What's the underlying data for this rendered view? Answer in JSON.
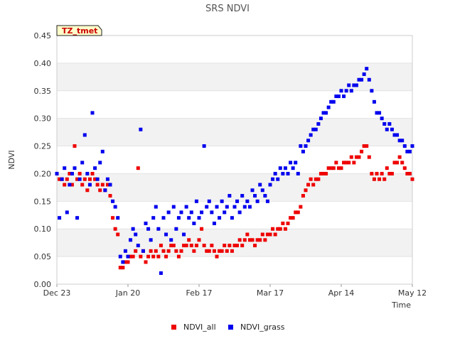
{
  "chart_data": {
    "type": "scatter",
    "title": "SRS NDVI",
    "xlabel": "Time",
    "ylabel": "NDVI",
    "annotation": "TZ_tmet",
    "x_unit": "days since Dec 23",
    "xlim": [
      0,
      140
    ],
    "ylim": [
      0,
      0.45
    ],
    "x_ticks": [
      {
        "label": "Dec 23",
        "day": 0
      },
      {
        "label": "Jan 20",
        "day": 28
      },
      {
        "label": "Feb 17",
        "day": 56
      },
      {
        "label": "Mar 17",
        "day": 84
      },
      {
        "label": "Apr 14",
        "day": 112
      },
      {
        "label": "May 12",
        "day": 140
      }
    ],
    "y_ticks": [
      "0.00",
      "0.05",
      "0.10",
      "0.15",
      "0.20",
      "0.25",
      "0.30",
      "0.35",
      "0.40",
      "0.45"
    ],
    "grid": "horizontal bands",
    "legend": "bottom-center",
    "series": [
      {
        "name": "NDVI_all",
        "color": "#ee0000",
        "x": [
          0,
          1,
          2,
          3,
          4,
          5,
          6,
          7,
          8,
          9,
          10,
          11,
          12,
          13,
          14,
          15,
          16,
          17,
          18,
          19,
          20,
          21,
          22,
          23,
          24,
          25,
          26,
          27,
          28,
          29,
          30,
          31,
          32,
          33,
          34,
          35,
          36,
          37,
          38,
          39,
          40,
          41,
          42,
          43,
          44,
          45,
          46,
          47,
          48,
          49,
          50,
          51,
          52,
          53,
          54,
          55,
          56,
          57,
          58,
          59,
          60,
          61,
          62,
          63,
          64,
          65,
          66,
          67,
          68,
          69,
          70,
          71,
          72,
          73,
          74,
          75,
          76,
          77,
          78,
          79,
          80,
          81,
          82,
          83,
          84,
          85,
          86,
          87,
          88,
          89,
          90,
          91,
          92,
          93,
          94,
          95,
          96,
          97,
          98,
          99,
          100,
          101,
          102,
          103,
          104,
          105,
          106,
          107,
          108,
          109,
          110,
          111,
          112,
          113,
          114,
          115,
          116,
          117,
          118,
          119,
          120,
          121,
          122,
          123,
          124,
          125,
          126,
          127,
          128,
          129,
          130,
          131,
          132,
          133,
          134,
          135,
          136,
          137,
          138,
          139,
          140
        ],
        "y": [
          0.2,
          0.19,
          0.19,
          0.18,
          0.19,
          0.2,
          0.18,
          0.25,
          0.19,
          0.2,
          0.18,
          0.19,
          0.17,
          0.19,
          0.2,
          0.19,
          0.18,
          0.17,
          0.18,
          0.17,
          0.18,
          0.16,
          0.12,
          0.1,
          0.09,
          0.03,
          0.03,
          0.04,
          0.04,
          0.05,
          0.05,
          0.06,
          0.21,
          0.05,
          0.06,
          0.04,
          0.05,
          0.06,
          0.05,
          0.06,
          0.05,
          0.07,
          0.06,
          0.05,
          0.06,
          0.07,
          0.07,
          0.06,
          0.05,
          0.06,
          0.07,
          0.07,
          0.08,
          0.07,
          0.06,
          0.07,
          0.08,
          0.1,
          0.07,
          0.06,
          0.06,
          0.07,
          0.06,
          0.05,
          0.06,
          0.06,
          0.07,
          0.06,
          0.07,
          0.06,
          0.07,
          0.07,
          0.08,
          0.07,
          0.08,
          0.09,
          0.08,
          0.08,
          0.07,
          0.08,
          0.08,
          0.09,
          0.08,
          0.09,
          0.09,
          0.1,
          0.09,
          0.1,
          0.1,
          0.11,
          0.1,
          0.11,
          0.12,
          0.12,
          0.13,
          0.13,
          0.14,
          0.16,
          0.17,
          0.18,
          0.19,
          0.18,
          0.19,
          0.19,
          0.2,
          0.2,
          0.2,
          0.21,
          0.21,
          0.21,
          0.22,
          0.21,
          0.21,
          0.22,
          0.22,
          0.22,
          0.23,
          0.22,
          0.23,
          0.23,
          0.24,
          0.25,
          0.25,
          0.23,
          0.2,
          0.19,
          0.2,
          0.19,
          0.2,
          0.19,
          0.21,
          0.2,
          0.2,
          0.22,
          0.22,
          0.23,
          0.22,
          0.21,
          0.2,
          0.2,
          0.19
        ]
      },
      {
        "name": "NDVI_grass",
        "color": "#0000ee",
        "x": [
          0,
          1,
          2,
          3,
          4,
          5,
          6,
          7,
          8,
          9,
          10,
          11,
          12,
          13,
          14,
          15,
          16,
          17,
          18,
          19,
          20,
          21,
          22,
          23,
          24,
          25,
          26,
          27,
          28,
          29,
          30,
          31,
          32,
          33,
          34,
          35,
          36,
          37,
          38,
          39,
          40,
          41,
          42,
          43,
          44,
          45,
          46,
          47,
          48,
          49,
          50,
          51,
          52,
          53,
          54,
          55,
          56,
          57,
          58,
          59,
          60,
          61,
          62,
          63,
          64,
          65,
          66,
          67,
          68,
          69,
          70,
          71,
          72,
          73,
          74,
          75,
          76,
          77,
          78,
          79,
          80,
          81,
          82,
          83,
          84,
          85,
          86,
          87,
          88,
          89,
          90,
          91,
          92,
          93,
          94,
          95,
          96,
          97,
          98,
          99,
          100,
          101,
          102,
          103,
          104,
          105,
          106,
          107,
          108,
          109,
          110,
          111,
          112,
          113,
          114,
          115,
          116,
          117,
          118,
          119,
          120,
          121,
          122,
          123,
          124,
          125,
          126,
          127,
          128,
          129,
          130,
          131,
          132,
          133,
          134,
          135,
          136,
          137,
          138,
          139,
          140
        ],
        "y": [
          0.2,
          0.12,
          0.19,
          0.21,
          0.13,
          0.18,
          0.2,
          0.21,
          0.12,
          0.19,
          0.22,
          0.27,
          0.2,
          0.18,
          0.31,
          0.21,
          0.19,
          0.22,
          0.24,
          0.17,
          0.19,
          0.18,
          0.15,
          0.14,
          0.12,
          0.05,
          0.04,
          0.06,
          0.05,
          0.08,
          0.1,
          0.09,
          0.07,
          0.28,
          0.06,
          0.11,
          0.1,
          0.08,
          0.12,
          0.14,
          0.1,
          0.02,
          0.12,
          0.09,
          0.13,
          0.08,
          0.14,
          0.1,
          0.12,
          0.13,
          0.09,
          0.14,
          0.12,
          0.13,
          0.11,
          0.15,
          0.12,
          0.13,
          0.25,
          0.14,
          0.15,
          0.13,
          0.11,
          0.14,
          0.12,
          0.15,
          0.13,
          0.14,
          0.16,
          0.12,
          0.14,
          0.15,
          0.13,
          0.16,
          0.14,
          0.15,
          0.14,
          0.17,
          0.16,
          0.15,
          0.18,
          0.17,
          0.16,
          0.15,
          0.18,
          0.19,
          0.2,
          0.19,
          0.21,
          0.2,
          0.21,
          0.2,
          0.22,
          0.21,
          0.22,
          0.2,
          0.25,
          0.24,
          0.25,
          0.26,
          0.27,
          0.28,
          0.28,
          0.29,
          0.3,
          0.31,
          0.31,
          0.32,
          0.33,
          0.33,
          0.34,
          0.34,
          0.35,
          0.34,
          0.35,
          0.36,
          0.35,
          0.36,
          0.36,
          0.37,
          0.37,
          0.38,
          0.39,
          0.37,
          0.35,
          0.33,
          0.31,
          0.31,
          0.3,
          0.29,
          0.28,
          0.29,
          0.28,
          0.27,
          0.27,
          0.26,
          0.26,
          0.25,
          0.24,
          0.24,
          0.25
        ]
      }
    ]
  }
}
